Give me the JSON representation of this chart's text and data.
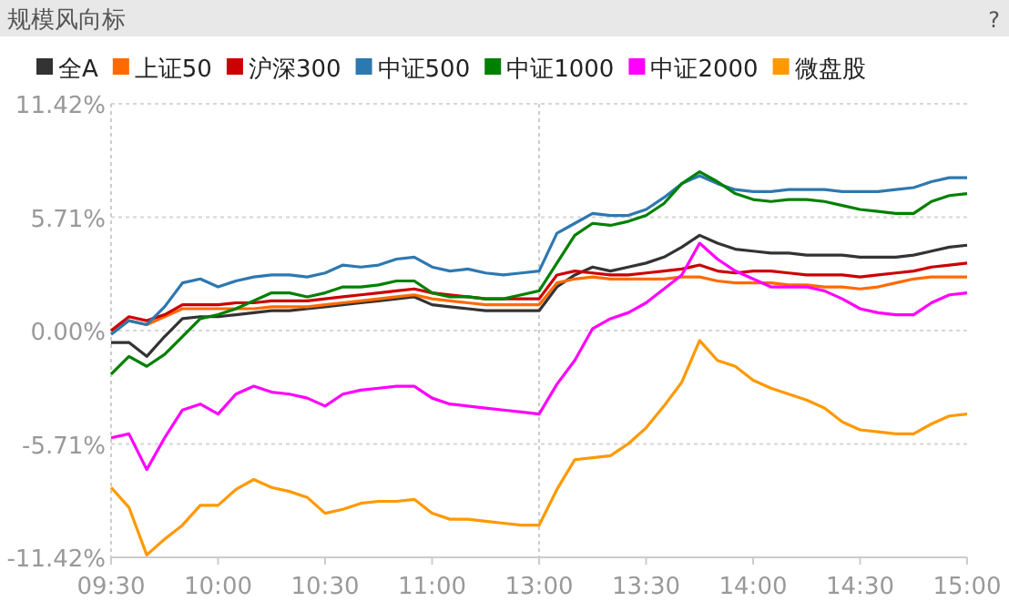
{
  "chart_data": {
    "type": "line",
    "title": "规模风向标",
    "annotations": [
      "?"
    ],
    "categories": [
      "09:30",
      null,
      null,
      null,
      null,
      null,
      "10:00",
      null,
      null,
      null,
      null,
      null,
      "10:30",
      null,
      null,
      null,
      null,
      null,
      "11:00",
      null,
      null,
      null,
      null,
      null,
      "13:00",
      null,
      null,
      null,
      null,
      null,
      "13:30",
      null,
      null,
      null,
      null,
      null,
      "14:00",
      null,
      null,
      null,
      null,
      null,
      "14:30",
      null,
      null,
      null,
      null,
      null,
      "15:00"
    ],
    "ylim": [
      -11.42,
      11.42
    ],
    "yticks": [
      {
        "value": 11.42,
        "label": "11.42%"
      },
      {
        "value": 5.71,
        "label": "5.71%"
      },
      {
        "value": 0,
        "label": "0.00%"
      },
      {
        "value": -5.71,
        "label": "-5.71%"
      },
      {
        "value": -11.42,
        "label": "-11.42%"
      }
    ],
    "grid": "y",
    "legend": "top",
    "marker": "none",
    "line_style": "solid",
    "ref_lines": [
      {
        "axis": "x",
        "value": "13:00",
        "line_style": "dotted",
        "color": "#cccccc"
      }
    ],
    "series": [
      {
        "name": "全A",
        "color": "#333333",
        "values": [
          -0.6,
          -0.6,
          -1.3,
          -0.3,
          0.6,
          0.7,
          0.7,
          0.8,
          0.9,
          1.0,
          1.0,
          1.1,
          1.2,
          1.3,
          1.4,
          1.5,
          1.6,
          1.7,
          1.3,
          1.2,
          1.1,
          1.0,
          1.0,
          1.0,
          1.0,
          2.2,
          2.8,
          3.2,
          3.0,
          3.2,
          3.4,
          3.7,
          4.2,
          4.8,
          4.4,
          4.1,
          4.0,
          3.9,
          3.9,
          3.8,
          3.8,
          3.8,
          3.7,
          3.7,
          3.7,
          3.8,
          4.0,
          4.2,
          4.3
        ]
      },
      {
        "name": "上证50",
        "color": "#ff6a00",
        "values": [
          0,
          0.5,
          0.3,
          0.7,
          1.1,
          1.1,
          1.1,
          1.1,
          1.1,
          1.2,
          1.2,
          1.2,
          1.3,
          1.4,
          1.5,
          1.6,
          1.7,
          1.8,
          1.6,
          1.5,
          1.4,
          1.3,
          1.3,
          1.3,
          1.3,
          2.4,
          2.6,
          2.7,
          2.6,
          2.6,
          2.6,
          2.6,
          2.7,
          2.7,
          2.5,
          2.4,
          2.4,
          2.4,
          2.3,
          2.3,
          2.2,
          2.2,
          2.1,
          2.2,
          2.4,
          2.6,
          2.7,
          2.7,
          2.7
        ]
      },
      {
        "name": "沪深300",
        "color": "#cc0000",
        "values": [
          0,
          0.7,
          0.5,
          0.8,
          1.3,
          1.3,
          1.3,
          1.4,
          1.4,
          1.5,
          1.5,
          1.5,
          1.6,
          1.7,
          1.8,
          1.9,
          2.0,
          2.1,
          1.9,
          1.8,
          1.7,
          1.6,
          1.6,
          1.6,
          1.6,
          2.8,
          3.0,
          2.9,
          2.8,
          2.8,
          2.9,
          3.0,
          3.1,
          3.3,
          3.0,
          2.9,
          3.0,
          3.0,
          2.9,
          2.8,
          2.8,
          2.8,
          2.7,
          2.8,
          2.9,
          3.0,
          3.2,
          3.3,
          3.4
        ]
      },
      {
        "name": "中证500",
        "color": "#2e78b0",
        "values": [
          -0.2,
          0.5,
          0.3,
          1.2,
          2.4,
          2.6,
          2.2,
          2.5,
          2.7,
          2.8,
          2.8,
          2.7,
          2.9,
          3.3,
          3.2,
          3.3,
          3.6,
          3.7,
          3.2,
          3.0,
          3.1,
          2.9,
          2.8,
          2.9,
          3.0,
          4.9,
          5.4,
          5.9,
          5.8,
          5.8,
          6.1,
          6.7,
          7.4,
          7.8,
          7.4,
          7.1,
          7.0,
          7.0,
          7.1,
          7.1,
          7.1,
          7.0,
          7.0,
          7.0,
          7.1,
          7.2,
          7.5,
          7.7,
          7.7
        ]
      },
      {
        "name": "中证1000",
        "color": "#008000",
        "values": [
          -2.2,
          -1.3,
          -1.8,
          -1.2,
          -0.3,
          0.6,
          0.8,
          1.1,
          1.5,
          1.9,
          1.9,
          1.7,
          1.9,
          2.2,
          2.2,
          2.3,
          2.5,
          2.5,
          1.9,
          1.7,
          1.7,
          1.6,
          1.6,
          1.8,
          2.0,
          3.4,
          4.8,
          5.4,
          5.3,
          5.5,
          5.8,
          6.4,
          7.4,
          8.0,
          7.5,
          6.9,
          6.6,
          6.5,
          6.6,
          6.6,
          6.5,
          6.3,
          6.1,
          6.0,
          5.9,
          5.9,
          6.5,
          6.8,
          6.9
        ]
      },
      {
        "name": "中证2000",
        "color": "#ff00ff",
        "values": [
          -5.4,
          -5.2,
          -7.0,
          -5.4,
          -4.0,
          -3.7,
          -4.2,
          -3.2,
          -2.8,
          -3.1,
          -3.2,
          -3.4,
          -3.8,
          -3.2,
          -3.0,
          -2.9,
          -2.8,
          -2.8,
          -3.4,
          -3.7,
          -3.8,
          -3.9,
          -4.0,
          -4.1,
          -4.2,
          -2.7,
          -1.5,
          0.1,
          0.6,
          0.9,
          1.4,
          2.1,
          2.8,
          4.4,
          3.6,
          3.0,
          2.6,
          2.2,
          2.2,
          2.2,
          2.0,
          1.6,
          1.1,
          0.9,
          0.8,
          0.8,
          1.4,
          1.8,
          1.9
        ]
      },
      {
        "name": "微盘股",
        "color": "#ff9900",
        "values": [
          -7.9,
          -8.9,
          -11.3,
          -10.5,
          -9.8,
          -8.8,
          -8.8,
          -8.0,
          -7.5,
          -7.9,
          -8.1,
          -8.4,
          -9.2,
          -9.0,
          -8.7,
          -8.6,
          -8.6,
          -8.5,
          -9.2,
          -9.5,
          -9.5,
          -9.6,
          -9.7,
          -9.8,
          -9.8,
          -8.0,
          -6.5,
          -6.4,
          -6.3,
          -5.7,
          -4.9,
          -3.8,
          -2.6,
          -0.5,
          -1.5,
          -1.8,
          -2.5,
          -2.9,
          -3.2,
          -3.5,
          -3.9,
          -4.6,
          -5.0,
          -5.1,
          -5.2,
          -5.2,
          -4.7,
          -4.3,
          -4.2
        ]
      }
    ]
  }
}
